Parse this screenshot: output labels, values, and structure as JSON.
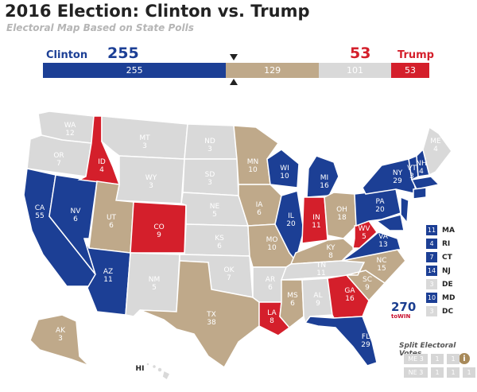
{
  "title": "2016 Election: Clinton vs. Trump",
  "subtitle": "Electoral Map Based on State Polls",
  "colors": {
    "clinton": "#1c3f95",
    "trump": "#d41f2b",
    "tossup": "#bfa98a",
    "nopoll": "#d9d9d9"
  },
  "header": {
    "clinton_name": "Clinton",
    "clinton_total": "255",
    "trump_name": "Trump",
    "trump_total": "53"
  },
  "bar": {
    "clinton": "255",
    "tossup": "129",
    "nopoll": "101",
    "trump": "53"
  },
  "states": [
    {
      "abbr": "WA",
      "ev": "12"
    },
    {
      "abbr": "OR",
      "ev": "7"
    },
    {
      "abbr": "CA",
      "ev": "55"
    },
    {
      "abbr": "NV",
      "ev": "6"
    },
    {
      "abbr": "ID",
      "ev": "4"
    },
    {
      "abbr": "MT",
      "ev": "3"
    },
    {
      "abbr": "WY",
      "ev": "3"
    },
    {
      "abbr": "UT",
      "ev": "6"
    },
    {
      "abbr": "AZ",
      "ev": "11"
    },
    {
      "abbr": "CO",
      "ev": "9"
    },
    {
      "abbr": "NM",
      "ev": "5"
    },
    {
      "abbr": "ND",
      "ev": "3"
    },
    {
      "abbr": "SD",
      "ev": "3"
    },
    {
      "abbr": "NE",
      "ev": "5"
    },
    {
      "abbr": "KS",
      "ev": "6"
    },
    {
      "abbr": "OK",
      "ev": "7"
    },
    {
      "abbr": "TX",
      "ev": "38"
    },
    {
      "abbr": "MN",
      "ev": "10"
    },
    {
      "abbr": "IA",
      "ev": "6"
    },
    {
      "abbr": "MO",
      "ev": "10"
    },
    {
      "abbr": "AR",
      "ev": "6"
    },
    {
      "abbr": "LA",
      "ev": "8"
    },
    {
      "abbr": "WI",
      "ev": "10"
    },
    {
      "abbr": "IL",
      "ev": "20"
    },
    {
      "abbr": "MI",
      "ev": "16"
    },
    {
      "abbr": "IN",
      "ev": "11"
    },
    {
      "abbr": "OH",
      "ev": "18"
    },
    {
      "abbr": "KY",
      "ev": "8"
    },
    {
      "abbr": "TN",
      "ev": "11"
    },
    {
      "abbr": "MS",
      "ev": "6"
    },
    {
      "abbr": "AL",
      "ev": "9"
    },
    {
      "abbr": "GA",
      "ev": "16"
    },
    {
      "abbr": "FL",
      "ev": "29"
    },
    {
      "abbr": "SC",
      "ev": "9"
    },
    {
      "abbr": "NC",
      "ev": "15"
    },
    {
      "abbr": "VA",
      "ev": "13"
    },
    {
      "abbr": "WV",
      "ev": "5"
    },
    {
      "abbr": "PA",
      "ev": "20"
    },
    {
      "abbr": "NY",
      "ev": "29"
    },
    {
      "abbr": "VT",
      "ev": "3"
    },
    {
      "abbr": "NH",
      "ev": "4"
    },
    {
      "abbr": "ME",
      "ev": "4"
    },
    {
      "abbr": "AK",
      "ev": "3"
    },
    {
      "abbr": "HI",
      "ev": ""
    }
  ],
  "small_states": [
    {
      "abbr": "MA",
      "ev": "11",
      "status": "clinton"
    },
    {
      "abbr": "RI",
      "ev": "4",
      "status": "clinton"
    },
    {
      "abbr": "CT",
      "ev": "7",
      "status": "clinton"
    },
    {
      "abbr": "NJ",
      "ev": "14",
      "status": "clinton"
    },
    {
      "abbr": "DE",
      "ev": "3",
      "status": "nopoll"
    },
    {
      "abbr": "MD",
      "ev": "10",
      "status": "clinton"
    },
    {
      "abbr": "DC",
      "ev": "3",
      "status": "nopoll"
    }
  ],
  "logo": {
    "number": "270",
    "word": "toWIN"
  },
  "split_votes": {
    "title": "Split Electoral Votes",
    "rows": [
      [
        "ME 3",
        "1",
        "1"
      ],
      [
        "NE 3",
        "1",
        "1",
        "1"
      ]
    ]
  }
}
